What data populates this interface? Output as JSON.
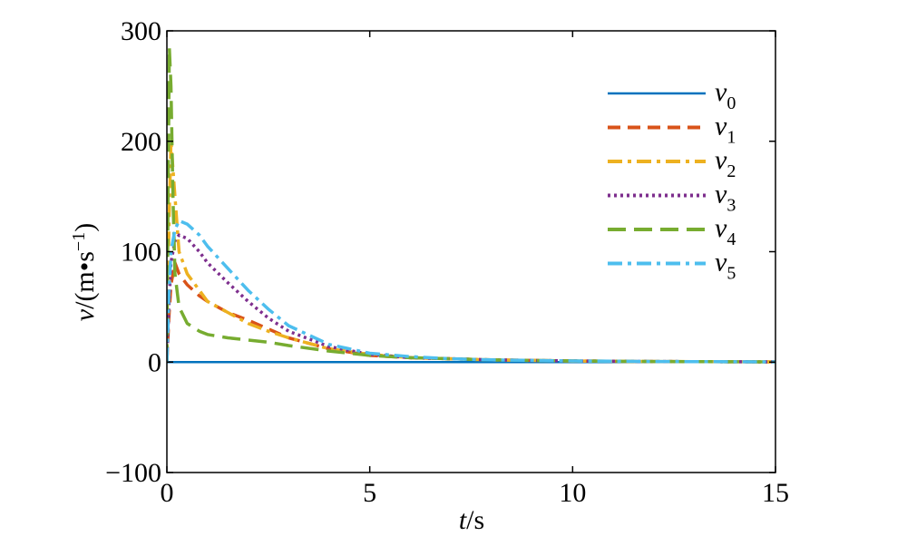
{
  "chart_data": {
    "type": "line",
    "title": "",
    "xlabel": {
      "var": "t",
      "unit": "/s"
    },
    "ylabel": {
      "var": "v",
      "unit": "/(m•s",
      "exp": "−1",
      "close": ")"
    },
    "xlim": [
      0,
      15
    ],
    "ylim": [
      -100,
      300
    ],
    "xticks": [
      0,
      5,
      10,
      15
    ],
    "yticks": [
      -100,
      0,
      100,
      200,
      300
    ],
    "xtick_labels": [
      "0",
      "5",
      "10",
      "15"
    ],
    "ytick_labels": [
      "−100",
      "0",
      "100",
      "200",
      "300"
    ],
    "grid": false,
    "legend_position": "top-right",
    "series": [
      {
        "name": "v",
        "sub": "0",
        "color": "#0072BD",
        "dash": "solid",
        "x": [
          0,
          15
        ],
        "y": [
          0,
          0
        ]
      },
      {
        "name": "v",
        "sub": "1",
        "color": "#D95319",
        "dash": "dashed",
        "x": [
          0,
          0.05,
          0.1,
          0.2,
          0.3,
          0.5,
          0.8,
          1.0,
          1.5,
          2.0,
          2.5,
          3.0,
          4.0,
          5.0,
          6.0,
          7.0,
          8.0,
          10.0,
          12.0,
          15.0
        ],
        "y": [
          0,
          40,
          70,
          90,
          80,
          70,
          60,
          55,
          45,
          38,
          30,
          22,
          12,
          6,
          4,
          3,
          2,
          1,
          0.5,
          0.2
        ]
      },
      {
        "name": "v",
        "sub": "2",
        "color": "#EDB120",
        "dash": "dashdot",
        "x": [
          0,
          0.05,
          0.1,
          0.2,
          0.3,
          0.5,
          0.8,
          1.0,
          1.5,
          2.0,
          2.5,
          3.0,
          4.0,
          5.0,
          6.0,
          7.0,
          8.0,
          10.0,
          12.0,
          15.0
        ],
        "y": [
          0,
          120,
          200,
          150,
          100,
          80,
          65,
          55,
          45,
          35,
          28,
          22,
          12,
          7,
          4,
          3,
          2,
          1,
          0.5,
          0.2
        ]
      },
      {
        "name": "v",
        "sub": "3",
        "color": "#7E2F8E",
        "dash": "dotted",
        "x": [
          0,
          0.05,
          0.1,
          0.2,
          0.3,
          0.5,
          0.8,
          1.0,
          1.5,
          2.0,
          2.5,
          3.0,
          4.0,
          5.0,
          6.0,
          7.0,
          8.0,
          10.0,
          12.0,
          15.0
        ],
        "y": [
          0,
          50,
          90,
          110,
          115,
          112,
          100,
          90,
          72,
          55,
          40,
          28,
          14,
          7,
          4,
          3,
          2,
          1,
          0.5,
          0.2
        ]
      },
      {
        "name": "v",
        "sub": "4",
        "color": "#77AC30",
        "dash": "longdash",
        "x": [
          0,
          0.03,
          0.06,
          0.1,
          0.15,
          0.2,
          0.3,
          0.5,
          0.8,
          1.0,
          1.5,
          2.0,
          2.5,
          3.0,
          4.0,
          5.0,
          6.0,
          7.0,
          8.0,
          10.0,
          12.0,
          15.0
        ],
        "y": [
          0,
          150,
          285,
          250,
          150,
          80,
          50,
          35,
          28,
          25,
          22,
          20,
          18,
          15,
          10,
          6,
          4,
          3,
          2,
          1,
          0.5,
          0.2
        ]
      },
      {
        "name": "v",
        "sub": "5",
        "color": "#4DBEEE",
        "dash": "dashdot",
        "x": [
          0,
          0.05,
          0.1,
          0.2,
          0.3,
          0.5,
          0.8,
          1.0,
          1.5,
          2.0,
          2.5,
          3.0,
          4.0,
          5.0,
          6.0,
          7.0,
          8.0,
          10.0,
          12.0,
          15.0
        ],
        "y": [
          0,
          60,
          100,
          120,
          128,
          125,
          115,
          105,
          85,
          65,
          48,
          33,
          16,
          8,
          5,
          3,
          2,
          1,
          0.5,
          0.2
        ]
      }
    ]
  }
}
